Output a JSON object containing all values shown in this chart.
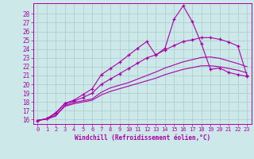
{
  "background_color": "#cce8e8",
  "grid_color": "#aacccc",
  "line_color": "#aa00aa",
  "marker": "+",
  "xlabel": "Windchill (Refroidissement éolien,°C)",
  "xlim": [
    -0.5,
    23.5
  ],
  "ylim": [
    15.5,
    29.2
  ],
  "xticks": [
    0,
    1,
    2,
    3,
    4,
    5,
    6,
    7,
    8,
    9,
    10,
    11,
    12,
    13,
    14,
    15,
    16,
    17,
    18,
    19,
    20,
    21,
    22,
    23
  ],
  "yticks": [
    16,
    17,
    18,
    19,
    20,
    21,
    22,
    23,
    24,
    25,
    26,
    27,
    28
  ],
  "series": [
    {
      "x": [
        0,
        1,
        2,
        3,
        4,
        5,
        6,
        7,
        8,
        9,
        10,
        11,
        12,
        13,
        14,
        15,
        16,
        17,
        18,
        19,
        20,
        21,
        22,
        23
      ],
      "y": [
        15.9,
        16.1,
        16.5,
        17.5,
        17.8,
        18.0,
        18.2,
        18.8,
        19.2,
        19.5,
        19.8,
        20.1,
        20.4,
        20.7,
        21.1,
        21.4,
        21.7,
        21.9,
        22.1,
        22.1,
        22.0,
        21.8,
        21.6,
        21.3
      ],
      "has_markers": false
    },
    {
      "x": [
        0,
        1,
        2,
        3,
        4,
        5,
        6,
        7,
        8,
        9,
        10,
        11,
        12,
        13,
        14,
        15,
        16,
        17,
        18,
        19,
        20,
        21,
        22,
        23
      ],
      "y": [
        15.9,
        16.05,
        16.4,
        17.6,
        17.95,
        18.15,
        18.35,
        19.1,
        19.6,
        19.9,
        20.2,
        20.6,
        21.0,
        21.4,
        21.85,
        22.2,
        22.55,
        22.8,
        23.05,
        23.1,
        22.95,
        22.65,
        22.35,
        22.0
      ],
      "has_markers": false
    },
    {
      "x": [
        0,
        1,
        2,
        3,
        4,
        5,
        6,
        7,
        8,
        9,
        10,
        11,
        12,
        13,
        14,
        15,
        16,
        17,
        18,
        19,
        20,
        21,
        22,
        23
      ],
      "y": [
        15.9,
        16.1,
        16.7,
        17.8,
        18.1,
        18.5,
        19.0,
        20.0,
        20.6,
        21.2,
        21.8,
        22.4,
        23.0,
        23.35,
        23.9,
        24.4,
        24.85,
        25.05,
        25.3,
        25.3,
        25.1,
        24.8,
        24.35,
        21.0
      ],
      "has_markers": true
    },
    {
      "x": [
        0,
        1,
        2,
        3,
        4,
        5,
        6,
        7,
        8,
        9,
        10,
        11,
        12,
        13,
        14,
        15,
        16,
        17,
        18,
        19,
        20,
        21,
        22,
        23
      ],
      "y": [
        15.9,
        16.1,
        16.8,
        17.85,
        18.2,
        18.85,
        19.5,
        21.1,
        21.8,
        22.5,
        23.3,
        24.1,
        24.85,
        23.3,
        24.1,
        27.4,
        28.9,
        27.1,
        24.6,
        21.7,
        21.85,
        21.35,
        21.1,
        20.9
      ],
      "has_markers": true
    }
  ]
}
